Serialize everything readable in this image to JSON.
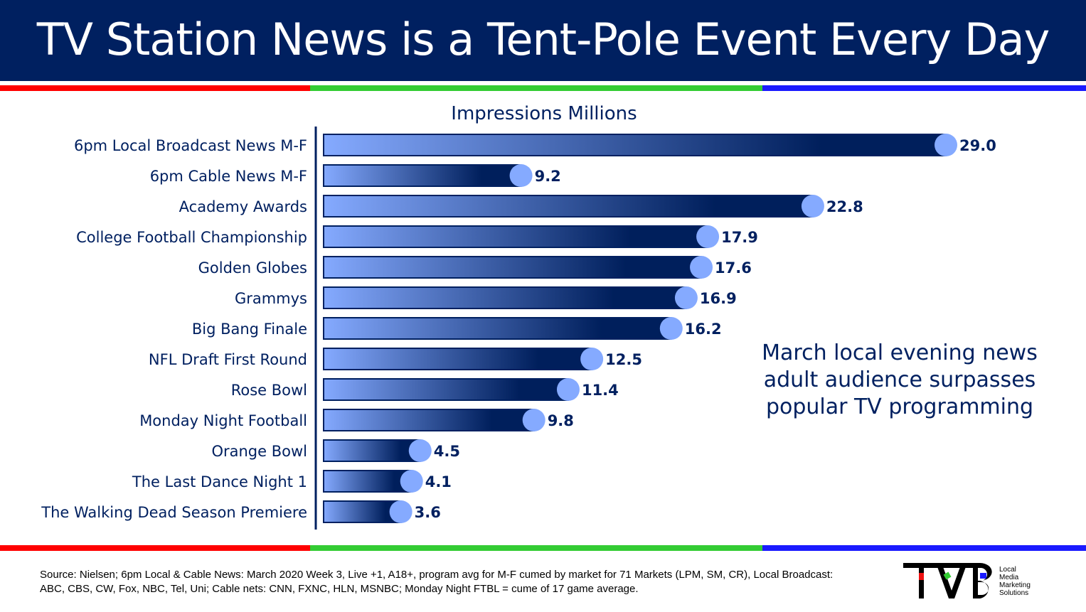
{
  "header": {
    "title": "TV Station News is a Tent-Pole Event Every Day"
  },
  "colors": {
    "header_bg": "#002060",
    "stripe": [
      "#ff0000",
      "#33cc33",
      "#1a1aff"
    ],
    "bar_light": "#85aaff",
    "bar_dark": "#001f5c",
    "dot": "#85aaff"
  },
  "chart_data": {
    "type": "bar",
    "orientation": "horizontal",
    "title": "Impressions Millions",
    "categories": [
      "6pm Local Broadcast News M-F",
      "6pm Cable News M-F",
      "Academy Awards",
      "College Football Championship",
      "Golden Globes",
      "Grammys",
      "Big Bang Finale",
      "NFL Draft First Round",
      "Rose Bowl",
      "Monday Night Football",
      "Orange Bowl",
      "The Last Dance Night 1",
      "The Walking Dead Season Premiere"
    ],
    "values": [
      29.0,
      9.2,
      22.8,
      17.9,
      17.6,
      16.9,
      16.2,
      12.5,
      11.4,
      9.8,
      4.5,
      4.1,
      3.6
    ],
    "data_labels": [
      "29.0",
      "9.2",
      "22.8",
      "17.9",
      "17.6",
      "16.9",
      "16.2",
      "12.5",
      "11.4",
      "9.8",
      "4.5",
      "4.1",
      "3.6"
    ],
    "xlim": [
      0,
      29
    ],
    "grid": false,
    "legend": "none"
  },
  "note": "March local evening news adult audience surpasses popular TV programming",
  "source": "Source: Nielsen; 6pm Local & Cable News: March 2020 Week 3, Live +1, A18+, program avg for M-F cumed by market for 71 Markets (LPM, SM, CR), Local Broadcast: ABC, CBS, CW, Fox, NBC, Tel, Uni; Cable nets: CNN, FXNC, HLN, MSNBC; Monday Night FTBL = cume of 17 game average.",
  "logo": {
    "mark": "TVB",
    "tagline": [
      "Local",
      "Media",
      "Marketing",
      "Solutions"
    ]
  }
}
